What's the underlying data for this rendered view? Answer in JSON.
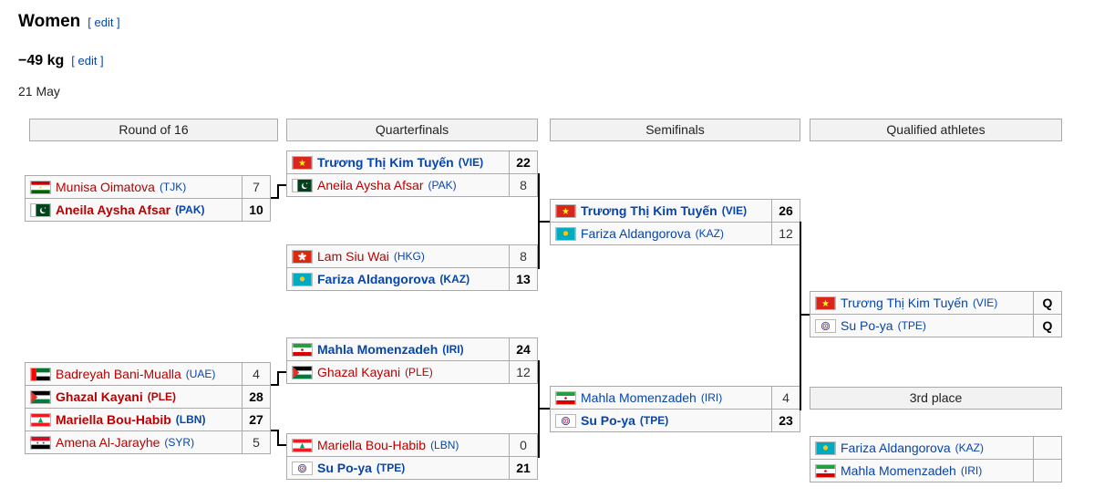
{
  "page": {
    "title": "Women",
    "title_edit": "[ edit ]",
    "weight_class": "−49 kg",
    "weight_edit": "[ edit ]",
    "date": "21 May"
  },
  "colors": {
    "link_blue": "#0645ad",
    "link_red": "#ba0000",
    "header_bg": "#f2f2f2",
    "cell_bg": "#f9f9f9",
    "border_gray": "#aaaaaa",
    "connector_black": "#000000"
  },
  "bracket": {
    "headers": [
      "Round of 16",
      "Quarterfinals",
      "Semifinals",
      "Qualified athletes"
    ],
    "third_place_label": "3rd place",
    "matches": {
      "r16_1": {
        "rows": [
          {
            "noc": "TJK",
            "name": "Munisa Oimatova",
            "noc_label": "(TJK)",
            "score": "7",
            "winner": false,
            "link": "red",
            "noc_link": "blue"
          },
          {
            "noc": "PAK",
            "name": "Aneila Aysha Afsar",
            "noc_label": "(PAK)",
            "score": "10",
            "winner": true,
            "link": "red",
            "noc_link": "blue"
          }
        ]
      },
      "r16_2": {
        "rows": [
          {
            "noc": "UAE",
            "name": "Badreyah Bani-Mualla",
            "noc_label": "(UAE)",
            "score": "4",
            "winner": false,
            "link": "red",
            "noc_link": "blue"
          },
          {
            "noc": "PLE",
            "name": "Ghazal Kayani",
            "noc_label": "(PLE)",
            "score": "28",
            "winner": true,
            "link": "red",
            "noc_link": "red"
          }
        ]
      },
      "r16_3": {
        "rows": [
          {
            "noc": "LBN",
            "name": "Mariella Bou-Habib",
            "noc_label": "(LBN)",
            "score": "27",
            "winner": true,
            "link": "red",
            "noc_link": "blue"
          },
          {
            "noc": "SYR",
            "name": "Amena Al-Jarayhe",
            "noc_label": "(SYR)",
            "score": "5",
            "winner": false,
            "link": "red",
            "noc_link": "blue"
          }
        ]
      },
      "qf1": {
        "rows": [
          {
            "noc": "VIE",
            "name": "Trương Thị Kim Tuyến",
            "noc_label": "(VIE)",
            "score": "22",
            "winner": true,
            "link": "blue",
            "noc_link": "blue"
          },
          {
            "noc": "PAK",
            "name": "Aneila Aysha Afsar",
            "noc_label": "(PAK)",
            "score": "8",
            "winner": false,
            "link": "red",
            "noc_link": "blue"
          }
        ]
      },
      "qf2": {
        "rows": [
          {
            "noc": "HKG",
            "name": "Lam Siu Wai",
            "noc_label": "(HKG)",
            "score": "8",
            "winner": false,
            "link": "red",
            "noc_link": "blue"
          },
          {
            "noc": "KAZ",
            "name": "Fariza Aldangorova",
            "noc_label": "(KAZ)",
            "score": "13",
            "winner": true,
            "link": "blue",
            "noc_link": "blue"
          }
        ]
      },
      "qf3": {
        "rows": [
          {
            "noc": "IRI",
            "name": "Mahla Momenzadeh",
            "noc_label": "(IRI)",
            "score": "24",
            "winner": true,
            "link": "blue",
            "noc_link": "blue"
          },
          {
            "noc": "PLE",
            "name": "Ghazal Kayani",
            "noc_label": "(PLE)",
            "score": "12",
            "winner": false,
            "link": "red",
            "noc_link": "red"
          }
        ]
      },
      "qf4": {
        "rows": [
          {
            "noc": "LBN",
            "name": "Mariella Bou-Habib",
            "noc_label": "(LBN)",
            "score": "0",
            "winner": false,
            "link": "red",
            "noc_link": "blue"
          },
          {
            "noc": "TPE",
            "name": "Su Po-ya",
            "noc_label": "(TPE)",
            "score": "21",
            "winner": true,
            "link": "blue",
            "noc_link": "blue"
          }
        ]
      },
      "sf1": {
        "rows": [
          {
            "noc": "VIE",
            "name": "Trương Thị Kim Tuyến",
            "noc_label": "(VIE)",
            "score": "26",
            "winner": true,
            "link": "blue",
            "noc_link": "blue"
          },
          {
            "noc": "KAZ",
            "name": "Fariza Aldangorova",
            "noc_label": "(KAZ)",
            "score": "12",
            "winner": false,
            "link": "blue",
            "noc_link": "blue"
          }
        ]
      },
      "sf2": {
        "rows": [
          {
            "noc": "IRI",
            "name": "Mahla Momenzadeh",
            "noc_label": "(IRI)",
            "score": "4",
            "winner": false,
            "link": "blue",
            "noc_link": "blue"
          },
          {
            "noc": "TPE",
            "name": "Su Po-ya",
            "noc_label": "(TPE)",
            "score": "23",
            "winner": true,
            "link": "blue",
            "noc_link": "blue"
          }
        ]
      },
      "qualified": {
        "rows": [
          {
            "noc": "VIE",
            "name": "Trương Thị Kim Tuyến",
            "noc_label": "(VIE)",
            "score": "Q",
            "winner": false,
            "link": "blue",
            "noc_link": "blue",
            "score_bold": true
          },
          {
            "noc": "TPE",
            "name": "Su Po-ya",
            "noc_label": "(TPE)",
            "score": "Q",
            "winner": false,
            "link": "blue",
            "noc_link": "blue",
            "score_bold": true
          }
        ]
      },
      "third": {
        "rows": [
          {
            "noc": "KAZ",
            "name": "Fariza Aldangorova",
            "noc_label": "(KAZ)",
            "score": "",
            "winner": false,
            "link": "blue",
            "noc_link": "blue"
          },
          {
            "noc": "IRI",
            "name": "Mahla Momenzadeh",
            "noc_label": "(IRI)",
            "score": "",
            "winner": false,
            "link": "blue",
            "noc_link": "blue"
          }
        ]
      }
    }
  }
}
